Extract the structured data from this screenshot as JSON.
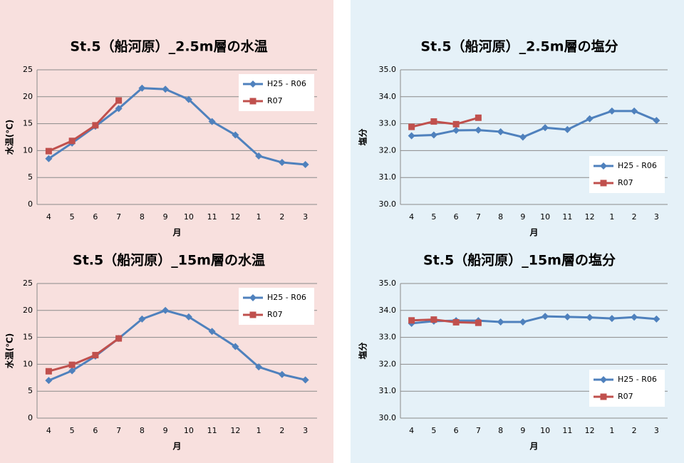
{
  "chart_data": [
    {
      "type": "line",
      "title": "St.5（船河原）_2.5m層の水温",
      "x_label": "月",
      "y_label": "水温(℃)",
      "categories": [
        "4",
        "5",
        "6",
        "7",
        "8",
        "9",
        "10",
        "11",
        "12",
        "1",
        "2",
        "3"
      ],
      "ylim": [
        0,
        25
      ],
      "yticks": [
        0,
        5,
        10,
        15,
        20,
        25
      ],
      "grid": true,
      "legend": "upper right",
      "series": [
        {
          "name": "H25 - R06",
          "color": "#4f81bd",
          "marker": "diamond",
          "values": [
            8.5,
            11.4,
            14.5,
            17.8,
            21.6,
            21.4,
            19.5,
            15.4,
            12.9,
            9.0,
            7.8,
            7.4
          ]
        },
        {
          "name": "R07",
          "color": "#c0504d",
          "marker": "square",
          "values": [
            9.9,
            11.8,
            14.7,
            19.3,
            null,
            null,
            null,
            null,
            null,
            null,
            null,
            null
          ]
        }
      ]
    },
    {
      "type": "line",
      "title": "St.5（船河原）_2.5m層の塩分",
      "x_label": "月",
      "y_label": "塩分",
      "categories": [
        "4",
        "5",
        "6",
        "7",
        "8",
        "9",
        "10",
        "11",
        "12",
        "1",
        "2",
        "3"
      ],
      "ylim": [
        30,
        35
      ],
      "yticks": [
        {
          "value": 30,
          "label": "30.0"
        },
        {
          "value": 31,
          "label": "31.0"
        },
        {
          "value": 32,
          "label": "32.0"
        },
        {
          "value": 33,
          "label": "33.0"
        },
        {
          "value": 34,
          "label": "34.0"
        },
        {
          "value": 35,
          "label": "35.0"
        }
      ],
      "grid": true,
      "legend": "lower right",
      "series": [
        {
          "name": "H25 - R06",
          "color": "#4f81bd",
          "marker": "diamond",
          "values": [
            32.55,
            32.58,
            32.75,
            32.76,
            32.7,
            32.5,
            32.85,
            32.78,
            33.18,
            33.47,
            33.47,
            33.12
          ]
        },
        {
          "name": "R07",
          "color": "#c0504d",
          "marker": "square",
          "values": [
            32.88,
            33.08,
            32.98,
            33.22,
            null,
            null,
            null,
            null,
            null,
            null,
            null,
            null
          ]
        }
      ]
    },
    {
      "type": "line",
      "title": "St.5（船河原）_15m層の水温",
      "x_label": "月",
      "y_label": "水温(℃)",
      "categories": [
        "4",
        "5",
        "6",
        "7",
        "8",
        "9",
        "10",
        "11",
        "12",
        "1",
        "2",
        "3"
      ],
      "ylim": [
        0,
        25
      ],
      "yticks": [
        0,
        5,
        10,
        15,
        20,
        25
      ],
      "grid": true,
      "legend": "upper right",
      "series": [
        {
          "name": "H25 - R06",
          "color": "#4f81bd",
          "marker": "diamond",
          "values": [
            7.0,
            8.8,
            11.5,
            14.8,
            18.4,
            20.0,
            18.8,
            16.1,
            13.3,
            9.5,
            8.1,
            7.1
          ]
        },
        {
          "name": "R07",
          "color": "#c0504d",
          "marker": "square",
          "values": [
            8.7,
            9.9,
            11.7,
            14.8,
            null,
            null,
            null,
            null,
            null,
            null,
            null,
            null
          ]
        }
      ]
    },
    {
      "type": "line",
      "title": "St.5（船河原）_15m層の塩分",
      "x_label": "月",
      "y_label": "塩分",
      "categories": [
        "4",
        "5",
        "6",
        "7",
        "8",
        "9",
        "10",
        "11",
        "12",
        "1",
        "2",
        "3"
      ],
      "ylim": [
        30,
        35
      ],
      "yticks": [
        {
          "value": 30,
          "label": "30.0"
        },
        {
          "value": 31,
          "label": "31.0"
        },
        {
          "value": 32,
          "label": "32.0"
        },
        {
          "value": 33,
          "label": "33.0"
        },
        {
          "value": 34,
          "label": "34.0"
        },
        {
          "value": 35,
          "label": "35.0"
        }
      ],
      "grid": true,
      "legend": "lower right",
      "series": [
        {
          "name": "H25 - R06",
          "color": "#4f81bd",
          "marker": "diamond",
          "values": [
            33.52,
            33.6,
            33.62,
            33.62,
            33.57,
            33.57,
            33.78,
            33.76,
            33.74,
            33.7,
            33.75,
            33.68
          ]
        },
        {
          "name": "R07",
          "color": "#c0504d",
          "marker": "square",
          "values": [
            33.63,
            33.66,
            33.56,
            33.54,
            null,
            null,
            null,
            null,
            null,
            null,
            null,
            null
          ]
        }
      ]
    }
  ]
}
